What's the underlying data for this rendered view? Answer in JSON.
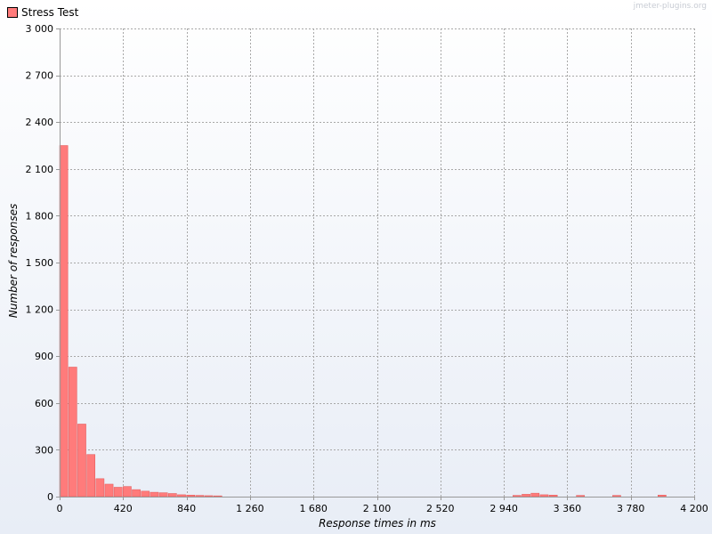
{
  "watermark": "jmeter-plugins.org",
  "colors": {
    "series": "#ff7b7b",
    "series_edge": "#e05a5a",
    "grid": "#a8a8a8",
    "axis": "#999999"
  },
  "chart_data": {
    "type": "bar",
    "title": "",
    "xlabel": "Response times in ms",
    "ylabel": "Number of responses",
    "xlim": [
      0,
      4200
    ],
    "ylim": [
      0,
      3000
    ],
    "bin_width": 60,
    "x_ticks": [
      0,
      420,
      840,
      1260,
      1680,
      2100,
      2520,
      2940,
      3360,
      3780,
      4200
    ],
    "x_tick_labels": [
      "0",
      "420",
      "840",
      "1 260",
      "1 680",
      "2 100",
      "2 520",
      "2 940",
      "3 360",
      "3 780",
      "4 200"
    ],
    "y_ticks": [
      0,
      300,
      600,
      900,
      1200,
      1500,
      1800,
      2100,
      2400,
      2700,
      3000
    ],
    "y_tick_labels": [
      "0",
      "300",
      "600",
      "900",
      "1 200",
      "1 500",
      "1 800",
      "2 100",
      "2 400",
      "2 700",
      "3 000"
    ],
    "legend": {
      "position": "top-left",
      "entries": [
        "Stress Test"
      ]
    },
    "grid": true,
    "series": [
      {
        "name": "Stress Test",
        "x": [
          0,
          60,
          120,
          180,
          240,
          300,
          360,
          420,
          480,
          540,
          600,
          660,
          720,
          780,
          840,
          900,
          960,
          1020,
          3000,
          3060,
          3120,
          3180,
          3240,
          3420,
          3660,
          3960
        ],
        "values": [
          2250,
          830,
          465,
          270,
          115,
          80,
          60,
          65,
          45,
          35,
          28,
          25,
          20,
          12,
          10,
          8,
          6,
          5,
          8,
          15,
          22,
          12,
          10,
          8,
          8,
          10
        ]
      }
    ]
  }
}
